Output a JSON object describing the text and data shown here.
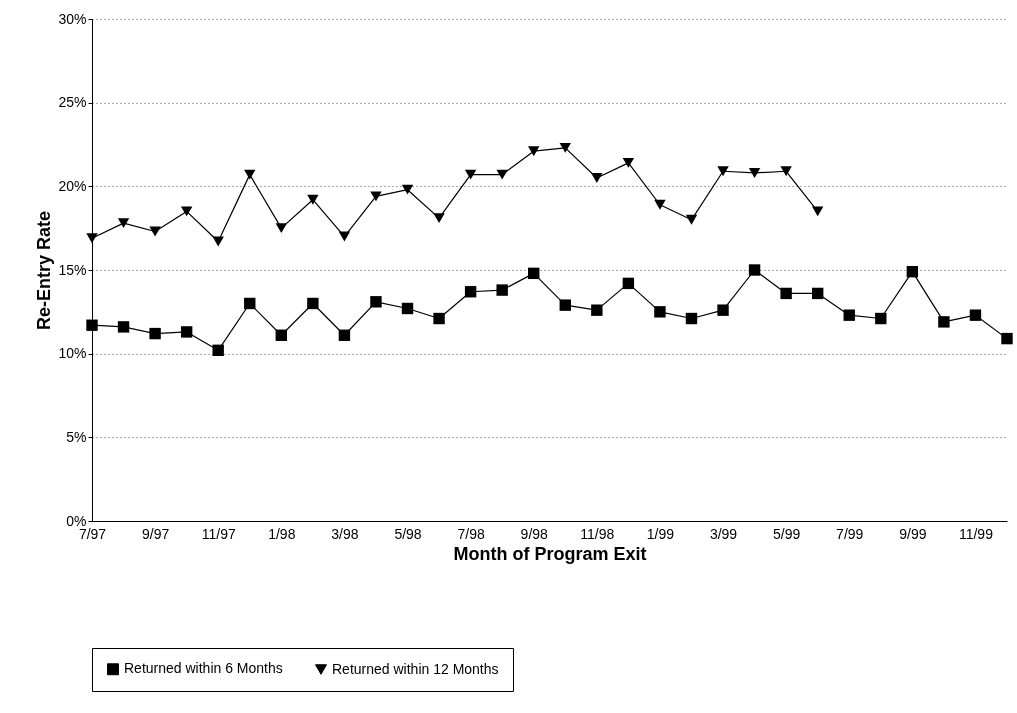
{
  "chart_data": {
    "type": "line",
    "xlabel": "Month of Program Exit",
    "ylabel": "Re-Entry Rate",
    "categories": [
      "7/97",
      null,
      "9/97",
      null,
      "11/97",
      null,
      "1/98",
      null,
      "3/98",
      null,
      "5/98",
      null,
      "7/98",
      null,
      "9/98",
      null,
      "11/98",
      null,
      "1/99",
      null,
      "3/99",
      null,
      "5/99",
      null,
      "7/99",
      null,
      "9/99",
      null,
      "11/99",
      null
    ],
    "series": [
      {
        "name": "Returned within 6 Months",
        "color": "#000000",
        "marker": "square",
        "values": [
          11.7,
          11.6,
          11.2,
          11.3,
          10.2,
          13.0,
          11.1,
          13.0,
          11.1,
          13.1,
          12.7,
          12.1,
          13.7,
          13.8,
          14.8,
          12.9,
          12.6,
          14.2,
          12.5,
          12.1,
          12.6,
          15.0,
          13.6,
          13.6,
          12.3,
          12.1,
          14.9,
          11.9,
          12.3,
          10.9
        ]
      },
      {
        "name": "Returned within 12 Months",
        "color": "#000000",
        "marker": "triangle",
        "values": [
          16.9,
          17.8,
          17.3,
          18.5,
          16.7,
          20.7,
          17.5,
          19.2,
          17.0,
          19.4,
          19.8,
          18.1,
          20.7,
          20.7,
          22.1,
          22.3,
          20.5,
          21.4,
          18.9,
          18.0,
          20.9,
          20.8,
          20.9,
          18.5,
          null,
          null,
          null,
          null,
          null,
          null
        ]
      }
    ],
    "ylim": [
      0,
      30
    ],
    "yticks": [
      {
        "value": 0,
        "label": "0%"
      },
      {
        "value": 5,
        "label": "5%"
      },
      {
        "value": 10,
        "label": "10%"
      },
      {
        "value": 15,
        "label": "15%"
      },
      {
        "value": 20,
        "label": "20%"
      },
      {
        "value": 25,
        "label": "25%"
      },
      {
        "value": 30,
        "label": "30%"
      }
    ],
    "grid": "y",
    "legend": "bottom",
    "line_style": "solid"
  }
}
